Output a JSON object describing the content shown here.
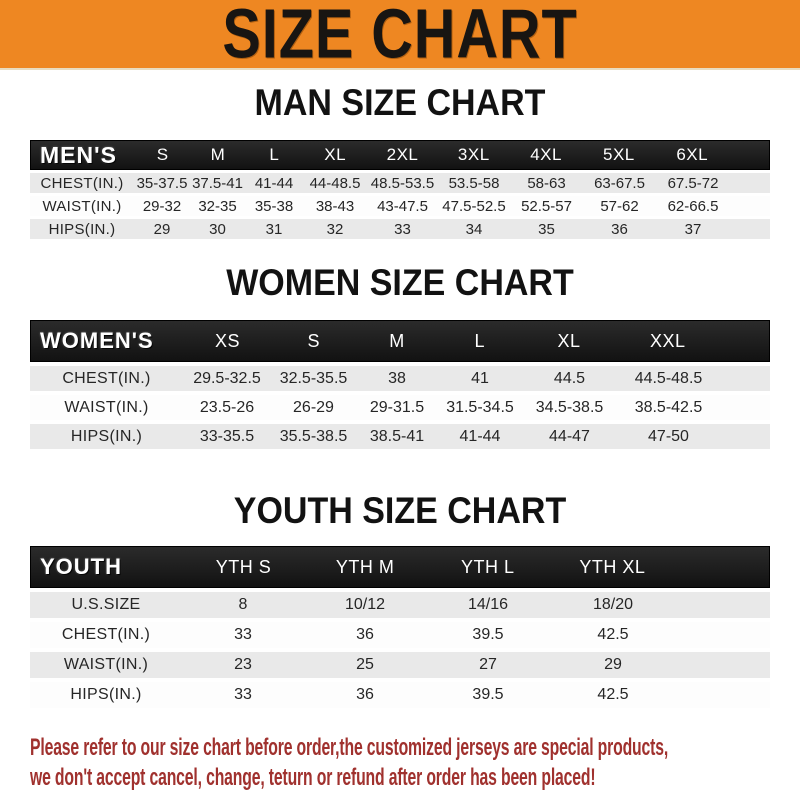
{
  "banner": {
    "title": "SIZE CHART",
    "bg_color": "#EE8722",
    "text_color": "#181512"
  },
  "sections": [
    {
      "heading": "MAN SIZE CHART",
      "header_label": "MEN'S",
      "columns": [
        "S",
        "M",
        "L",
        "XL",
        "2XL",
        "3XL",
        "4XL",
        "5XL",
        "6XL"
      ],
      "rows": [
        {
          "label": "CHEST(IN.)",
          "values": [
            "35-37.5",
            "37.5-41",
            "41-44",
            "44-48.5",
            "48.5-53.5",
            "53.5-58",
            "58-63",
            "63-67.5",
            "67.5-72"
          ]
        },
        {
          "label": "WAIST(IN.)",
          "values": [
            "29-32",
            "32-35",
            "35-38",
            "38-43",
            "43-47.5",
            "47.5-52.5",
            "52.5-57",
            "57-62",
            "62-66.5"
          ]
        },
        {
          "label": "HIPS(IN.)",
          "values": [
            "29",
            "30",
            "31",
            "32",
            "33",
            "34",
            "35",
            "36",
            "37"
          ]
        }
      ]
    },
    {
      "heading": "WOMEN SIZE CHART",
      "header_label": "WOMEN'S",
      "columns": [
        "XS",
        "S",
        "M",
        "L",
        "XL",
        "XXL"
      ],
      "rows": [
        {
          "label": "CHEST(IN.)",
          "values": [
            "29.5-32.5",
            "32.5-35.5",
            "38",
            "41",
            "44.5",
            "44.5-48.5"
          ]
        },
        {
          "label": "WAIST(IN.)",
          "values": [
            "23.5-26",
            "26-29",
            "29-31.5",
            "31.5-34.5",
            "34.5-38.5",
            "38.5-42.5"
          ]
        },
        {
          "label": "HIPS(IN.)",
          "values": [
            "33-35.5",
            "35.5-38.5",
            "38.5-41",
            "41-44",
            "44-47",
            "47-50"
          ]
        }
      ]
    },
    {
      "heading": "YOUTH SIZE CHART",
      "header_label": "YOUTH",
      "columns": [
        "YTH S",
        "YTH M",
        "YTH L",
        "YTH XL"
      ],
      "rows": [
        {
          "label": "U.S.SIZE",
          "values": [
            "8",
            "10/12",
            "14/16",
            "18/20"
          ]
        },
        {
          "label": "CHEST(IN.)",
          "values": [
            "33",
            "36",
            "39.5",
            "42.5"
          ]
        },
        {
          "label": "WAIST(IN.)",
          "values": [
            "23",
            "25",
            "27",
            "29"
          ]
        },
        {
          "label": "HIPS(IN.)",
          "values": [
            "33",
            "36",
            "39.5",
            "42.5"
          ]
        }
      ]
    }
  ],
  "footer": {
    "line1": "Please refer to our size chart before order,the customized jerseys are special products,",
    "line2": "we don't accept cancel, change, teturn or refund after order has been placed!",
    "text_color": "#A0312E"
  }
}
